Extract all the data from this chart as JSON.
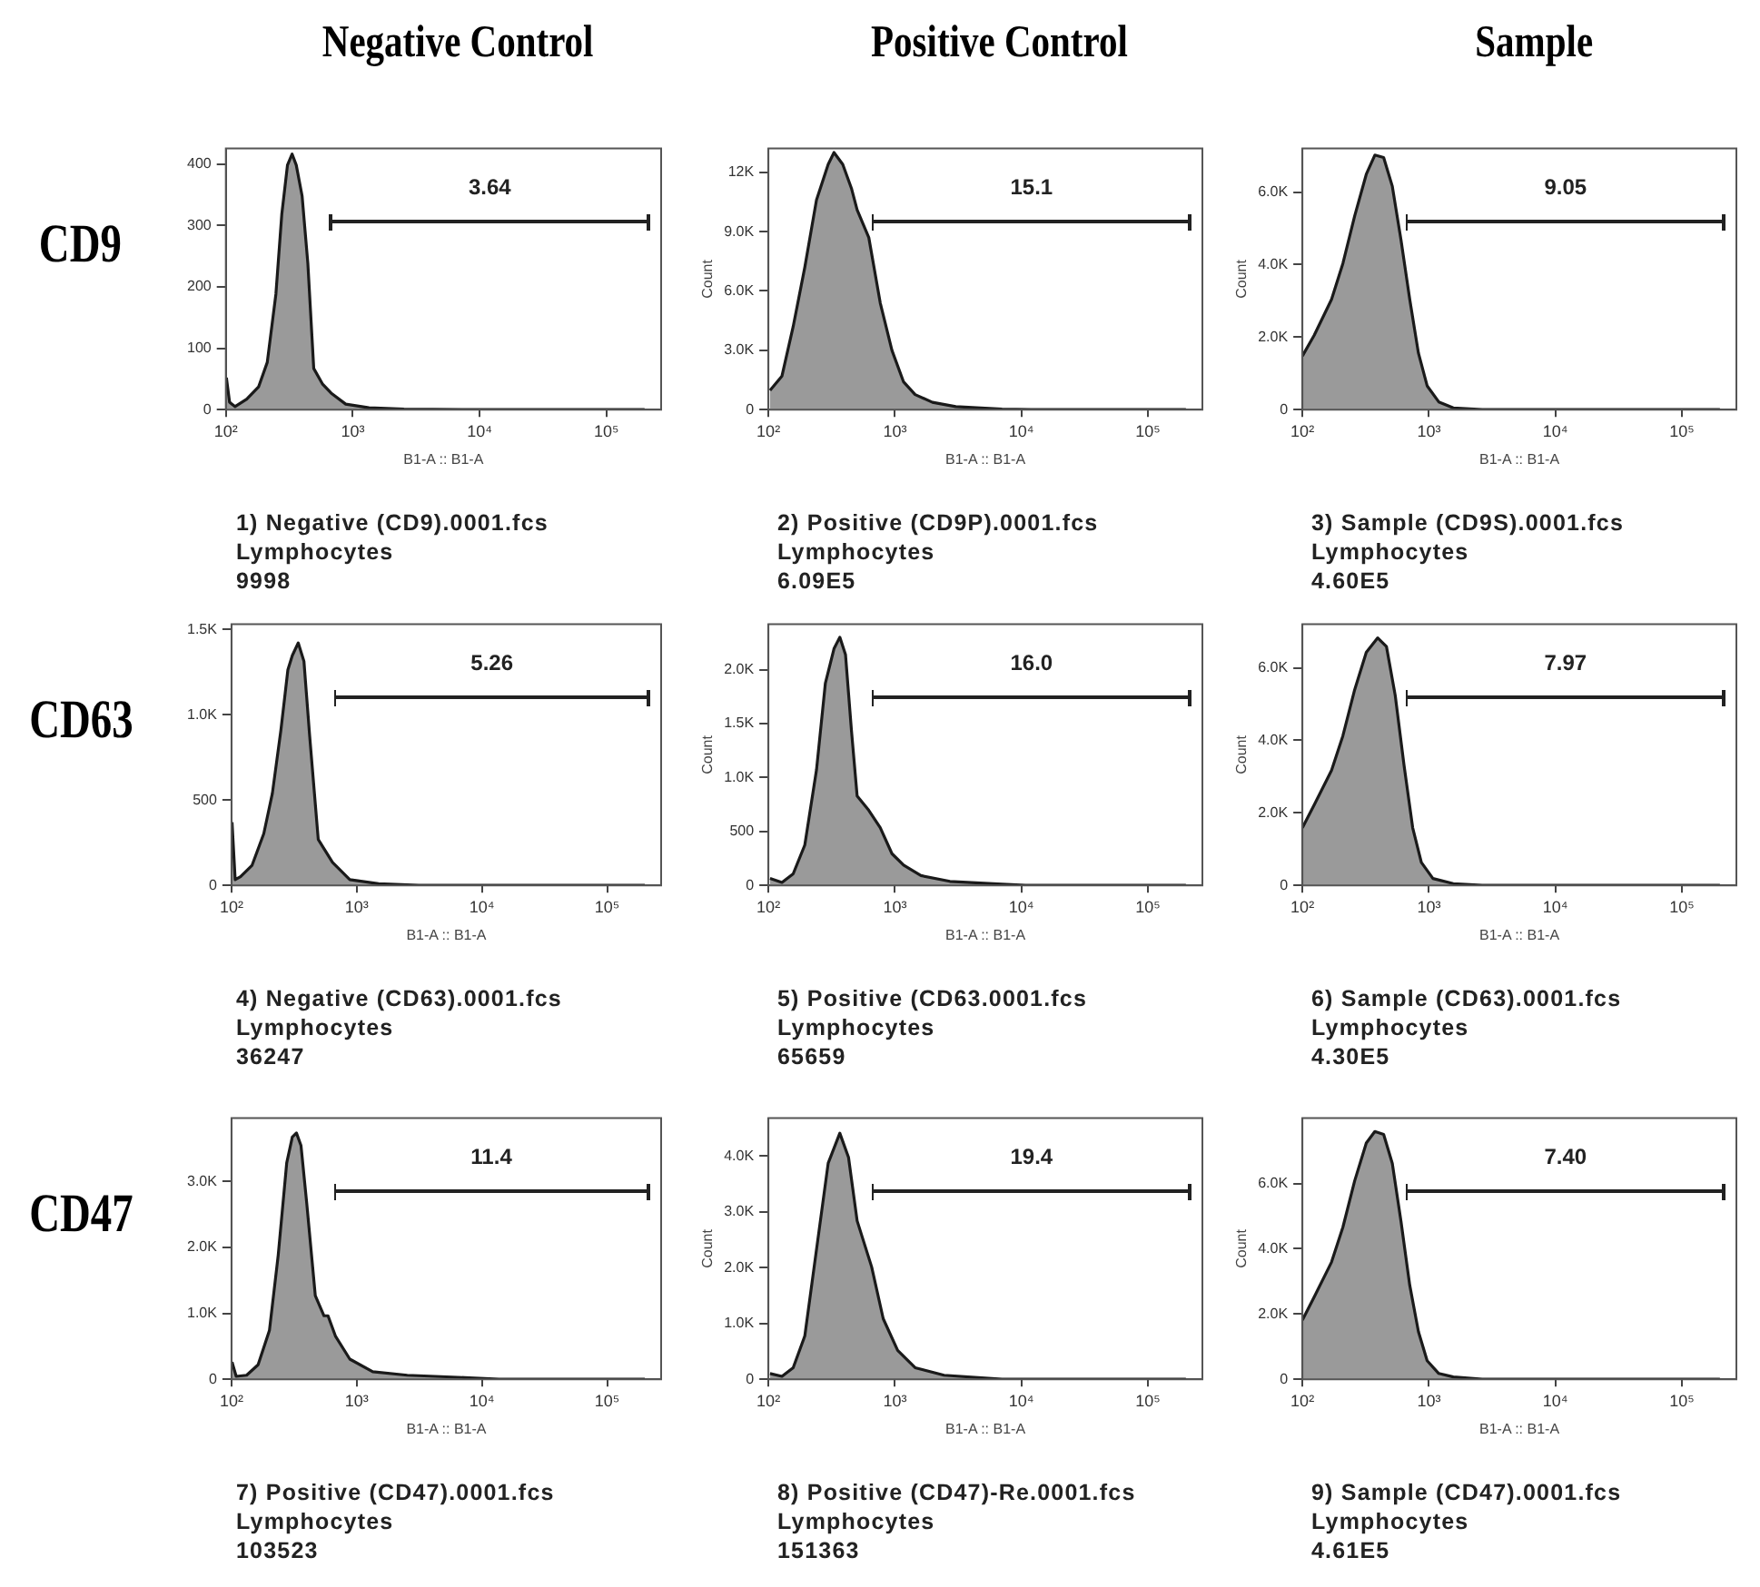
{
  "chart_data": [
    {
      "type": "area",
      "title": "Negative Control",
      "ylabel": "CD9",
      "xlabel": "B1-A :: B1-A",
      "log": "x",
      "color": "#9a9a9a",
      "xlim": [
        100,
        270000
      ],
      "xticks": [
        {
          "value": 100,
          "label": "10²"
        },
        {
          "value": 1000,
          "label": "10³"
        },
        {
          "value": 10000,
          "label": "10⁴"
        },
        {
          "value": 100000,
          "label": "10⁵"
        }
      ],
      "ylim": [
        0,
        425
      ],
      "yticks": [
        0,
        100,
        200,
        300,
        400
      ],
      "x": [
        101,
        107,
        118,
        146,
        181,
        212,
        248,
        276,
        306,
        333,
        359,
        399,
        443,
        493,
        577,
        676,
        881,
        1343,
        2535,
        7280,
        200000
      ],
      "values": [
        52,
        12,
        5,
        17,
        37,
        77,
        188,
        318,
        398,
        416,
        398,
        348,
        238,
        67,
        42,
        27,
        9,
        3,
        1,
        0,
        0
      ],
      "annotations": [
        "3.64",
        "1) Negative (CD9).0001.fcs",
        "Lymphocytes",
        "9998"
      ]
    },
    {
      "type": "area",
      "title": "Positive Control",
      "ylabel": "Count",
      "xlabel": "B1-A :: B1-A",
      "log": "x",
      "color": "#9a9a9a",
      "xlim": [
        100,
        270000
      ],
      "xticks": [
        {
          "value": 100,
          "label": "10²"
        },
        {
          "value": 1000,
          "label": "10³"
        },
        {
          "value": 10000,
          "label": "10⁴"
        },
        {
          "value": 100000,
          "label": "10⁵"
        }
      ],
      "ylim": [
        0,
        13200
      ],
      "yticks": [
        0,
        {
          "value": 3000,
          "label": "3.0K"
        },
        {
          "value": 6000,
          "label": "6.0K"
        },
        {
          "value": 9000,
          "label": "9.0K"
        },
        {
          "value": 12000,
          "label": "12K"
        }
      ],
      "x": [
        103,
        128,
        157,
        194,
        240,
        297,
        330,
        387,
        453,
        503,
        622,
        766,
        948,
        1172,
        1446,
        1982,
        3030,
        7030,
        11900,
        200000
      ],
      "values": [
        975,
        1700,
        4200,
        7200,
        10600,
        12400,
        13000,
        12400,
        11200,
        10100,
        8700,
        5400,
        3000,
        1400,
        760,
        370,
        150,
        30,
        0,
        0
      ],
      "annotations": [
        "15.1",
        "2) Positive (CD9P).0001.fcs",
        "Lymphocytes",
        "6.09E5"
      ]
    },
    {
      "type": "area",
      "title": "Sample",
      "ylabel": "Count",
      "xlabel": "B1-A :: B1-A",
      "log": "x",
      "color": "#9a9a9a",
      "xlim": [
        100,
        270000
      ],
      "xticks": [
        {
          "value": 100,
          "label": "10²"
        },
        {
          "value": 1000,
          "label": "10³"
        },
        {
          "value": 10000,
          "label": "10⁴"
        },
        {
          "value": 100000,
          "label": "10⁵"
        }
      ],
      "ylim": [
        0,
        7200
      ],
      "yticks": [
        0,
        {
          "value": 2000,
          "label": "2.0K"
        },
        {
          "value": 4000,
          "label": "4.0K"
        },
        {
          "value": 6000,
          "label": "6.0K"
        }
      ],
      "x": [
        100,
        124,
        170,
        209,
        259,
        320,
        374,
        439,
        514,
        602,
        706,
        827,
        969,
        1197,
        1560,
        2640,
        200000
      ],
      "values": [
        1480,
        2050,
        3040,
        4030,
        5340,
        6490,
        7020,
        6950,
        6160,
        4680,
        3040,
        1560,
        657,
        214,
        49,
        0,
        0
      ],
      "annotations": [
        "9.05",
        "3) Sample (CD9S).0001.fcs",
        "Lymphocytes",
        "4.60E5"
      ]
    },
    {
      "type": "area",
      "ylabel": "CD63",
      "xlabel": "B1-A :: B1-A",
      "log": "x",
      "color": "#9a9a9a",
      "xlim": [
        100,
        270000
      ],
      "xticks": [
        {
          "value": 100,
          "label": "10²"
        },
        {
          "value": 1000,
          "label": "10³"
        },
        {
          "value": 10000,
          "label": "10⁴"
        },
        {
          "value": 100000,
          "label": "10⁵"
        }
      ],
      "ylim": [
        0,
        1530
      ],
      "yticks": [
        0,
        500,
        {
          "value": 1000,
          "label": "1.0K"
        },
        {
          "value": 1500,
          "label": "1.5K"
        }
      ],
      "x": [
        101,
        107,
        118,
        146,
        181,
        212,
        248,
        282,
        306,
        341,
        379,
        421,
        493,
        641,
        881,
        1493,
        3126,
        200000
      ],
      "values": [
        370,
        34,
        51,
        118,
        303,
        539,
        909,
        1263,
        1347,
        1421,
        1313,
        875,
        269,
        135,
        34,
        10,
        0,
        0
      ],
      "annotations": [
        "5.26",
        "4) Negative (CD63).0001.fcs",
        "Lymphocytes",
        "36247"
      ]
    },
    {
      "type": "area",
      "ylabel": "Count",
      "xlabel": "B1-A :: B1-A",
      "log": "x",
      "color": "#9a9a9a",
      "xlim": [
        100,
        270000
      ],
      "xticks": [
        {
          "value": 100,
          "label": "10²"
        },
        {
          "value": 1000,
          "label": "10³"
        },
        {
          "value": 10000,
          "label": "10⁴"
        },
        {
          "value": 100000,
          "label": "10⁵"
        }
      ],
      "ylim": [
        0,
        2420
      ],
      "yticks": [
        0,
        500,
        {
          "value": 1000,
          "label": "1.0K"
        },
        {
          "value": 1500,
          "label": "1.5K"
        },
        {
          "value": 2000,
          "label": "2.0K"
        }
      ],
      "x": [
        103,
        128,
        157,
        194,
        240,
        282,
        330,
        367,
        407,
        453,
        503,
        622,
        766,
        948,
        1172,
        1607,
        2723,
        7030,
        10760,
        200000
      ],
      "values": [
        64,
        27,
        107,
        374,
        1070,
        1872,
        2193,
        2300,
        2139,
        1444,
        829,
        695,
        535,
        294,
        187,
        91,
        37,
        11,
        0,
        0
      ],
      "annotations": [
        "16.0",
        "5) Positive (CD63.0001.fcs",
        "Lymphocytes",
        "65659"
      ]
    },
    {
      "type": "area",
      "ylabel": "Count",
      "xlabel": "B1-A :: B1-A",
      "log": "x",
      "color": "#9a9a9a",
      "xlim": [
        100,
        270000
      ],
      "xticks": [
        {
          "value": 100,
          "label": "10²"
        },
        {
          "value": 1000,
          "label": "10³"
        },
        {
          "value": 10000,
          "label": "10⁴"
        },
        {
          "value": 100000,
          "label": "10⁵"
        }
      ],
      "ylim": [
        0,
        7200
      ],
      "yticks": [
        0,
        {
          "value": 2000,
          "label": "2.0K"
        },
        {
          "value": 4000,
          "label": "4.0K"
        },
        {
          "value": 6000,
          "label": "6.0K"
        }
      ],
      "x": [
        100,
        124,
        170,
        209,
        259,
        320,
        394,
        462,
        542,
        635,
        745,
        872,
        1077,
        1560,
        2640,
        200000
      ],
      "values": [
        1587,
        2222,
        3174,
        4126,
        5396,
        6427,
        6824,
        6586,
        5237,
        3333,
        1587,
        635,
        190,
        48,
        0,
        0
      ],
      "annotations": [
        "7.97",
        "6) Sample (CD63).0001.fcs",
        "Lymphocytes",
        "4.30E5"
      ]
    },
    {
      "type": "area",
      "ylabel": "CD47",
      "xlabel": "B1-A :: B1-A",
      "log": "x",
      "color": "#9a9a9a",
      "xlim": [
        100,
        270000
      ],
      "xticks": [
        {
          "value": 100,
          "label": "10²"
        },
        {
          "value": 1000,
          "label": "10³"
        },
        {
          "value": 10000,
          "label": "10⁴"
        },
        {
          "value": 100000,
          "label": "10⁵"
        }
      ],
      "ylim": [
        0,
        3960
      ],
      "yticks": [
        0,
        {
          "value": 1000,
          "label": "1.0K"
        },
        {
          "value": 2000,
          "label": "2.0K"
        },
        {
          "value": 3000,
          "label": "3.0K"
        }
      ],
      "x": [
        101,
        109,
        132,
        163,
        201,
        236,
        276,
        306,
        330,
        359,
        399,
        467,
        548,
        590,
        676,
        881,
        1343,
        2535,
        7280,
        13700,
        200000
      ],
      "values": [
        263,
        44,
        61,
        219,
        744,
        1881,
        3281,
        3675,
        3736,
        3544,
        2669,
        1269,
        963,
        963,
        656,
        306,
        114,
        61,
        26,
        0,
        0
      ],
      "annotations": [
        "11.4",
        "7) Positive (CD47).0001.fcs",
        "Lymphocytes",
        "103523"
      ]
    },
    {
      "type": "area",
      "ylabel": "Count",
      "xlabel": "B1-A :: B1-A",
      "log": "x",
      "color": "#9a9a9a",
      "xlim": [
        100,
        270000
      ],
      "xticks": [
        {
          "value": 100,
          "label": "10²"
        },
        {
          "value": 1000,
          "label": "10³"
        },
        {
          "value": 10000,
          "label": "10⁴"
        },
        {
          "value": 100000,
          "label": "10⁵"
        }
      ],
      "ylim": [
        0,
        4680
      ],
      "yticks": [
        0,
        {
          "value": 1000,
          "label": "1.0K"
        },
        {
          "value": 2000,
          "label": "2.0K"
        },
        {
          "value": 3000,
          "label": "3.0K"
        },
        {
          "value": 4000,
          "label": "4.0K"
        }
      ],
      "x": [
        103,
        128,
        157,
        194,
        240,
        297,
        367,
        430,
        503,
        655,
        809,
        1052,
        1446,
        2448,
        7030,
        200000
      ],
      "values": [
        103,
        52,
        207,
        775,
        2324,
        3874,
        4411,
        3977,
        2841,
        2015,
        1085,
        517,
        207,
        72,
        0,
        0
      ],
      "annotations": [
        "19.4",
        "8) Positive (CD47)-Re.0001.fcs",
        "Lymphocytes",
        "151363"
      ]
    },
    {
      "type": "area",
      "ylabel": "Count",
      "xlabel": "B1-A :: B1-A",
      "log": "x",
      "color": "#9a9a9a",
      "xlim": [
        100,
        270000
      ],
      "xticks": [
        {
          "value": 100,
          "label": "10²"
        },
        {
          "value": 1000,
          "label": "10³"
        },
        {
          "value": 10000,
          "label": "10⁴"
        },
        {
          "value": 100000,
          "label": "10⁵"
        }
      ],
      "ylim": [
        0,
        8000
      ],
      "yticks": [
        0,
        {
          "value": 2000,
          "label": "2.0K"
        },
        {
          "value": 4000,
          "label": "4.0K"
        },
        {
          "value": 6000,
          "label": "6.0K"
        }
      ],
      "x": [
        100,
        124,
        170,
        209,
        259,
        320,
        374,
        439,
        514,
        602,
        706,
        827,
        969,
        1197,
        1560,
        2640,
        200000
      ],
      "values": [
        1813,
        2524,
        3591,
        4658,
        6080,
        7236,
        7592,
        7503,
        6614,
        4836,
        2880,
        1458,
        569,
        178,
        71,
        0,
        0
      ],
      "annotations": [
        "7.40",
        "9) Sample (CD47).0001.fcs",
        "Lymphocytes",
        "4.61E5"
      ]
    }
  ]
}
